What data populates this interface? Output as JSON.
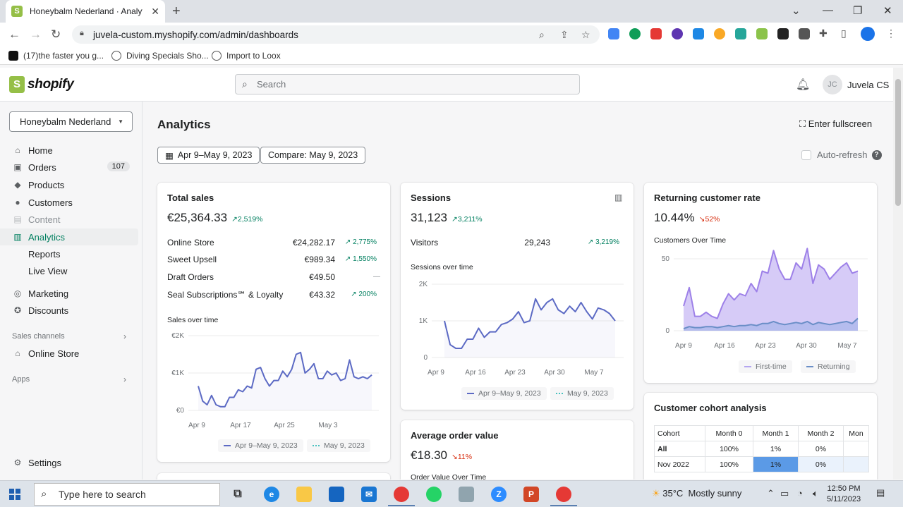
{
  "browser": {
    "tab_title": "Honeybalm Nederland · Analytics",
    "url": "juvela-custom.myshopify.com/admin/dashboards",
    "bookmarks": [
      "(17)the faster you g...",
      "Diving Specials Sho...",
      "Import to Loox"
    ]
  },
  "header": {
    "logo_text": "shopify",
    "search_placeholder": "Search",
    "avatar_initials": "JC",
    "user_name": "Juvela CS"
  },
  "sidebar": {
    "store": "Honeybalm Nederland",
    "items": [
      {
        "label": "Home"
      },
      {
        "label": "Orders",
        "badge": "107"
      },
      {
        "label": "Products"
      },
      {
        "label": "Customers"
      },
      {
        "label": "Content"
      },
      {
        "label": "Analytics"
      },
      {
        "label": "Reports"
      },
      {
        "label": "Live View"
      },
      {
        "label": "Marketing"
      },
      {
        "label": "Discounts"
      }
    ],
    "sales_channels_label": "Sales channels",
    "online_store_label": "Online Store",
    "apps_label": "Apps",
    "settings_label": "Settings"
  },
  "page": {
    "title": "Analytics",
    "fullscreen_label": "Enter fullscreen",
    "date_range": "Apr 9–May 9, 2023",
    "compare": "Compare: May 9, 2023",
    "auto_refresh": "Auto-refresh"
  },
  "total_sales": {
    "title": "Total sales",
    "value": "€25,364.33",
    "delta": "2,519%",
    "rows": [
      {
        "label": "Online Store",
        "value": "€24,282.17",
        "delta": "2,775%"
      },
      {
        "label": "Sweet Upsell",
        "value": "€989.34",
        "delta": "1,550%"
      },
      {
        "label": "Draft Orders",
        "value": "€49.50",
        "delta": "—"
      },
      {
        "label": "Seal Subscriptions℠ & Loyalty",
        "value": "€43.32",
        "delta": "200%"
      }
    ],
    "chart_title": "Sales over time",
    "legend_current": "Apr 9–May 9, 2023",
    "legend_compare": "May 9, 2023"
  },
  "sessions": {
    "title": "Sessions",
    "value": "31,123",
    "delta": "3,211%",
    "visitors_label": "Visitors",
    "visitors_value": "29,243",
    "visitors_delta": "3,219%",
    "chart_title": "Sessions over time",
    "legend_current": "Apr 9–May 9, 2023",
    "legend_compare": "May 9, 2023"
  },
  "aov": {
    "title": "Average order value",
    "value": "€18.30",
    "delta": "11%",
    "chart_title": "Order Value Over Time"
  },
  "returning": {
    "title": "Returning customer rate",
    "value": "10.44%",
    "delta": "52%",
    "chart_title": "Customers Over Time",
    "legend_first": "First-time",
    "legend_returning": "Returning"
  },
  "cohort": {
    "title": "Customer cohort analysis",
    "headers": [
      "Cohort",
      "Month 0",
      "Month 1",
      "Month 2",
      "Mon"
    ],
    "rows": [
      [
        "All",
        "100%",
        "1%",
        "0%",
        ""
      ],
      [
        "Nov 2022",
        "100%",
        "1%",
        "0%",
        ""
      ]
    ]
  },
  "chart_data": [
    {
      "type": "line",
      "title": "Sales over time",
      "x_ticks": [
        "Apr 9",
        "Apr 17",
        "Apr 25",
        "May 3"
      ],
      "y_ticks": [
        "€2K",
        "€1K",
        "€0"
      ],
      "ylim": [
        0,
        2000
      ],
      "series": [
        {
          "name": "Apr 9–May 9, 2023",
          "values": [
            650,
            250,
            150,
            400,
            150,
            100,
            100,
            350,
            350,
            550,
            500,
            650,
            600,
            1100,
            1150,
            850,
            650,
            800,
            800,
            1050,
            900,
            1100,
            1500,
            1550,
            1000,
            1100,
            1250,
            850,
            850,
            1050,
            950,
            1000,
            800,
            850,
            1350,
            900,
            850,
            900,
            850,
            950
          ]
        }
      ]
    },
    {
      "type": "line",
      "title": "Sessions over time",
      "x_ticks": [
        "Apr 9",
        "Apr 16",
        "Apr 23",
        "Apr 30",
        "May 7"
      ],
      "y_ticks": [
        "2K",
        "1K",
        "0"
      ],
      "ylim": [
        0,
        2000
      ],
      "series": [
        {
          "name": "Apr 9–May 9, 2023",
          "values": [
            1000,
            350,
            250,
            250,
            500,
            500,
            800,
            550,
            700,
            700,
            900,
            950,
            1050,
            1250,
            950,
            1000,
            1600,
            1300,
            1500,
            1600,
            1300,
            1200,
            1400,
            1250,
            1500,
            1250,
            1050,
            1350,
            1300,
            1200,
            1000
          ]
        }
      ]
    },
    {
      "type": "area",
      "title": "Customers Over Time",
      "x_ticks": [
        "Apr 9",
        "Apr 16",
        "Apr 23",
        "Apr 30",
        "May 7"
      ],
      "y_ticks": [
        "50",
        "0"
      ],
      "ylim": [
        0,
        70
      ],
      "series": [
        {
          "name": "First-time",
          "values": [
            24,
            42,
            14,
            14,
            18,
            14,
            12,
            26,
            36,
            30,
            36,
            34,
            46,
            38,
            58,
            56,
            78,
            60,
            50,
            50,
            66,
            60,
            80,
            46,
            64,
            60,
            50,
            56,
            62,
            66,
            56,
            58
          ]
        },
        {
          "name": "Returning",
          "values": [
            2,
            4,
            3,
            3,
            4,
            4,
            3,
            4,
            5,
            4,
            5,
            5,
            6,
            5,
            7,
            7,
            9,
            7,
            6,
            7,
            8,
            7,
            9,
            6,
            8,
            7,
            6,
            7,
            8,
            9,
            7,
            12
          ]
        }
      ]
    }
  ]
}
